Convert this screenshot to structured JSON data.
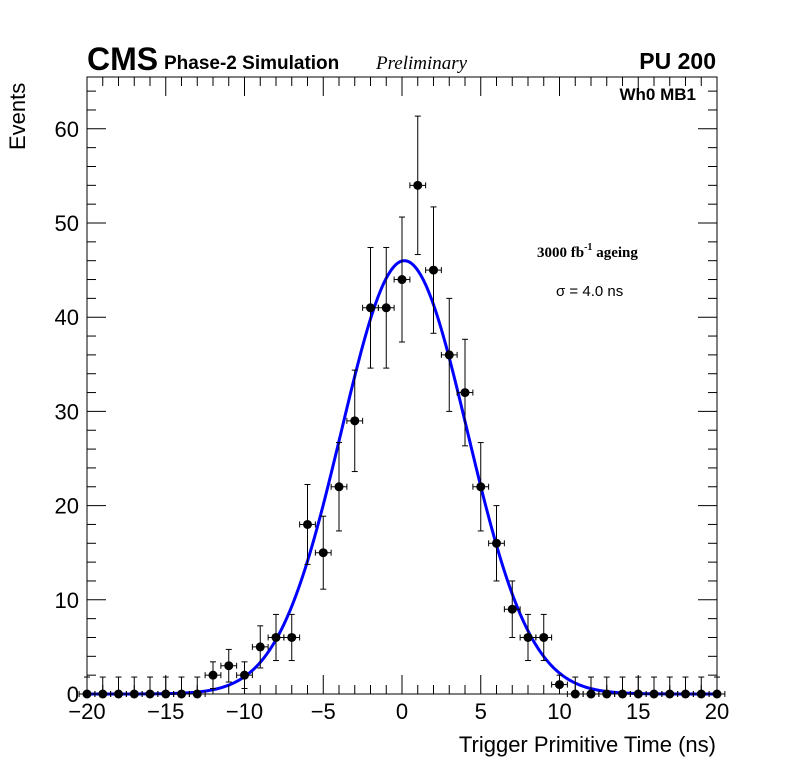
{
  "chart_data": {
    "type": "scatter",
    "experiment": "CMS",
    "subtitle": "Phase-2 Simulation",
    "status": "Preliminary",
    "pileup": "PU 200",
    "channel": "Wh0 MB1",
    "ageing_value": "3000 fb",
    "ageing_exp": "-1",
    "ageing_word": " ageing",
    "sigma_label": "σ = 4.0 ns",
    "xlabel": "Trigger Primitive Time (ns)",
    "ylabel": "Events",
    "xlim": [
      -20,
      20
    ],
    "ylim": [
      0,
      65.5
    ],
    "x_ticks": [
      -20,
      -15,
      -10,
      -5,
      0,
      5,
      10,
      15,
      20
    ],
    "x_tick_labels": [
      "−20",
      "−15",
      "−10",
      "−5",
      "0",
      "5",
      "10",
      "15",
      "20"
    ],
    "y_ticks": [
      0,
      10,
      20,
      30,
      40,
      50,
      60
    ],
    "y_tick_labels": [
      "0",
      "10",
      "20",
      "30",
      "40",
      "50",
      "60"
    ],
    "bin_width": 1,
    "x": [
      -20,
      -19,
      -18,
      -17,
      -16,
      -15,
      -14,
      -13,
      -12,
      -11,
      -10,
      -9,
      -8,
      -7,
      -6,
      -5,
      -4,
      -3,
      -2,
      -1,
      0,
      1,
      2,
      3,
      4,
      5,
      6,
      7,
      8,
      9,
      10,
      11,
      12,
      13,
      14,
      15,
      16,
      17,
      18,
      19,
      20
    ],
    "y": [
      0,
      0,
      0,
      0,
      0,
      0,
      0,
      0,
      2,
      3,
      2,
      5,
      6,
      6,
      18,
      15,
      22,
      29,
      41,
      41,
      44,
      54,
      45,
      36,
      32,
      22,
      16,
      9,
      6,
      6,
      1,
      0,
      0,
      0,
      0,
      0,
      0,
      0,
      0,
      0,
      0
    ],
    "fit": {
      "function": "gaussian",
      "amplitude": 46,
      "mean": 0.15,
      "sigma": 4.0,
      "color": "#0000ff"
    },
    "marker_color": "#000000"
  }
}
